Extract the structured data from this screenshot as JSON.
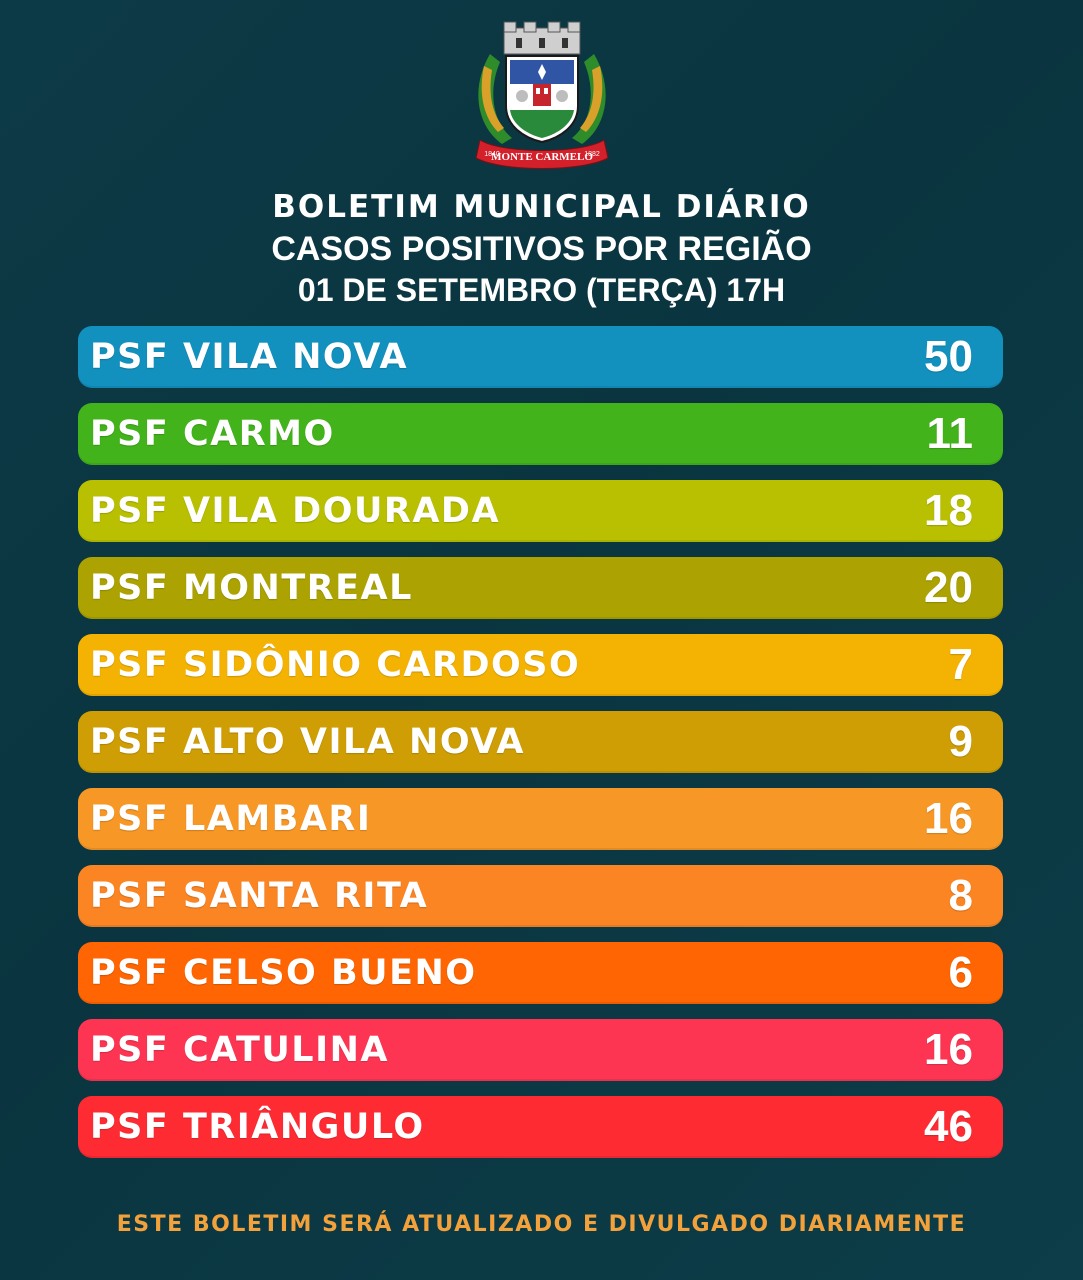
{
  "seal": {
    "banner_text": "MONTE CARMELO",
    "year_left": "1840",
    "year_right": "1882"
  },
  "header": {
    "line1": "BOLETIM MUNICIPAL DIÁRIO",
    "line2": "CASOS POSITIVOS POR REGIÃO",
    "line3": "01 DE SETEMBRO (TERÇA) 17H"
  },
  "regions": [
    {
      "name": "PSF VILA NOVA",
      "cases": "50",
      "color": "#1291be"
    },
    {
      "name": "PSF CARMO",
      "cases": "11",
      "color": "#43b31b"
    },
    {
      "name": "PSF VILA DOURADA",
      "cases": "18",
      "color": "#b9c001"
    },
    {
      "name": "PSF MONTREAL",
      "cases": "20",
      "color": "#aca302"
    },
    {
      "name": "PSF SIDÔNIO CARDOSO",
      "cases": "7",
      "color": "#f4b203"
    },
    {
      "name": "PSF ALTO VILA NOVA",
      "cases": "9",
      "color": "#cf9e05"
    },
    {
      "name": "PSF LAMBARI",
      "cases": "16",
      "color": "#f79726"
    },
    {
      "name": "PSF SANTA RITA",
      "cases": "8",
      "color": "#fb8423"
    },
    {
      "name": "PSF CELSO BUENO",
      "cases": "6",
      "color": "#ff6502"
    },
    {
      "name": "PSF CATULINA",
      "cases": "16",
      "color": "#fd3553"
    },
    {
      "name": "PSF TRIÂNGULO",
      "cases": "46",
      "color": "#fe2b33"
    }
  ],
  "footer": {
    "text": "ESTE BOLETIM SERÁ ATUALIZADO E DIVULGADO DIARIAMENTE"
  }
}
